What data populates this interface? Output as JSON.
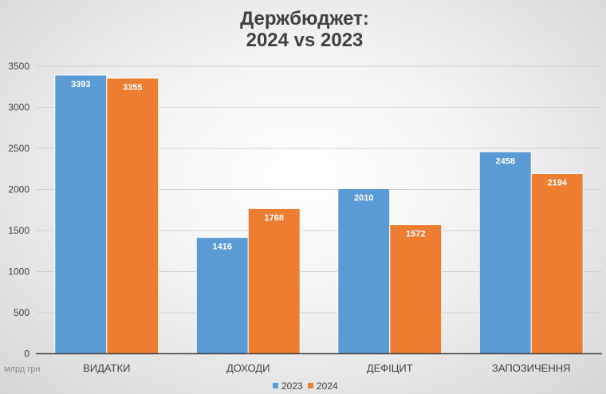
{
  "chart_data": {
    "type": "bar",
    "title_line1": "Держбюджет:",
    "title_line2": "2024 vs 2023",
    "categories": [
      "ВИДАТКИ",
      "ДОХОДИ",
      "ДЕФІЦИТ",
      "ЗАПОЗИЧЕННЯ"
    ],
    "series": [
      {
        "name": "2023",
        "values": [
          3393,
          1416,
          2010,
          2458
        ],
        "color": "#5B9BD5"
      },
      {
        "name": "2024",
        "values": [
          3355,
          1768,
          1572,
          2194
        ],
        "color": "#ED7D31"
      }
    ],
    "y_ticks": [
      "0",
      "500",
      "1000",
      "1500",
      "2000",
      "2500",
      "3000",
      "3500"
    ],
    "ylim": [
      0,
      3500
    ],
    "unit_label": "млрд грн",
    "grid": true,
    "legend_position": "bottom"
  }
}
